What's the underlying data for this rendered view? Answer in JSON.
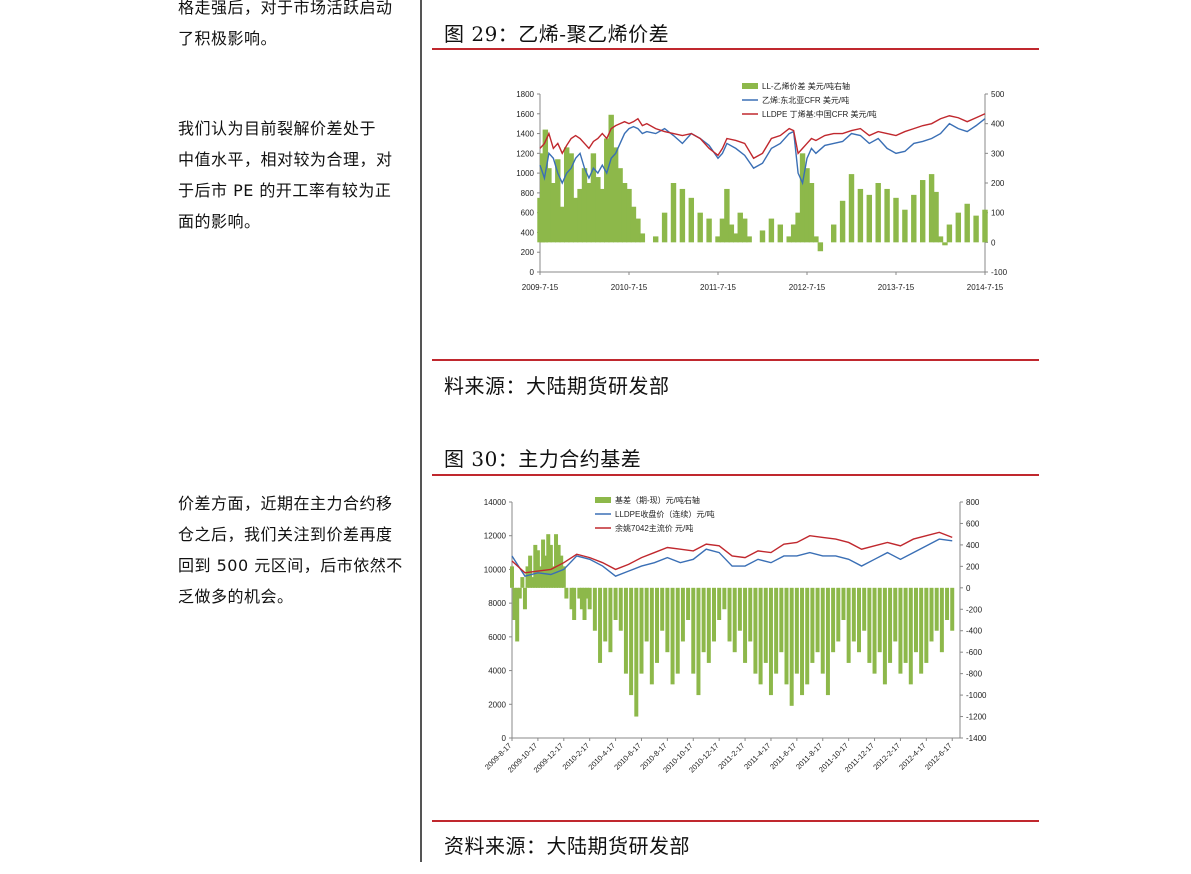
{
  "left_text": {
    "para1_line1": "格走强后，对于市场活跃启动",
    "para1_line2": "了积极影响。",
    "para2_lines": [
      "我们认为目前裂解价差处于",
      "中值水平，相对较为合理，对",
      "于后市 PE 的开工率有较为正",
      "面的影响。"
    ],
    "para3_lines": [
      "价差方面，近期在主力合约移",
      "仓之后，我们关注到价差再度",
      "回到 500 元区间，后市依然不",
      "乏做多的机会。"
    ]
  },
  "figure29": {
    "title": "图 29：乙烯-聚乙烯价差",
    "source": "料来源：大陆期货研发部"
  },
  "figure30": {
    "title": "图 30：主力合约基差",
    "source": "资料来源：大陆期货研发部"
  },
  "colors": {
    "spread": "#8db84a",
    "blue": "#3a6fb5",
    "red": "#c0282e"
  },
  "chart_data": [
    {
      "type": "line",
      "x_ticks": [
        "2009-7-15",
        "2010-7-15",
        "2011-7-15",
        "2012-7-15",
        "2013-7-15",
        "2014-7-15"
      ],
      "ylim_left": [
        0,
        1800
      ],
      "yticks_left": [
        0,
        200,
        400,
        600,
        800,
        1000,
        1200,
        1400,
        1600,
        1800
      ],
      "ylim_right": [
        -100,
        500
      ],
      "yticks_right": [
        -100,
        0,
        100,
        200,
        300,
        400,
        500
      ],
      "legend_position": "top-center",
      "series": [
        {
          "name": "LL-乙烯价差 美元/吨右轴",
          "type": "area",
          "axis": "right",
          "x": [
            0,
            0.03,
            0.06,
            0.1,
            0.15,
            0.2,
            0.25,
            0.3,
            0.35,
            0.4,
            0.45,
            0.5,
            0.55,
            0.6,
            0.65,
            0.7,
            0.75,
            0.8,
            0.85,
            0.9,
            0.95,
            1,
            1.05,
            1.1,
            1.15,
            1.2,
            1.3,
            1.4,
            1.5,
            1.6,
            1.7,
            1.8,
            1.9,
            2,
            2.05,
            2.1,
            2.15,
            2.2,
            2.25,
            2.3,
            2.35,
            2.4,
            2.5,
            2.6,
            2.7,
            2.8,
            2.85,
            2.9,
            2.95,
            3,
            3.05,
            3.1,
            3.15,
            3.2,
            3.3,
            3.4,
            3.5,
            3.6,
            3.7,
            3.8,
            3.9,
            4,
            4.1,
            4.2,
            4.3,
            4.4,
            4.45,
            4.5,
            4.55,
            4.6,
            4.7,
            4.8,
            4.9,
            5
          ],
          "values": [
            150,
            300,
            380,
            250,
            200,
            280,
            120,
            320,
            300,
            150,
            180,
            250,
            200,
            300,
            220,
            180,
            350,
            430,
            320,
            250,
            200,
            180,
            120,
            80,
            30,
            0,
            20,
            100,
            200,
            180,
            150,
            100,
            80,
            20,
            80,
            180,
            60,
            30,
            100,
            80,
            20,
            0,
            40,
            80,
            60,
            20,
            60,
            100,
            300,
            250,
            200,
            20,
            -30,
            0,
            60,
            140,
            230,
            180,
            160,
            200,
            180,
            150,
            110,
            160,
            210,
            230,
            170,
            20,
            -10,
            60,
            100,
            130,
            90,
            110
          ]
        },
        {
          "name": "乙烯:东北亚CFR 美元/吨",
          "type": "line",
          "axis": "left",
          "x": [
            0,
            0.05,
            0.1,
            0.15,
            0.2,
            0.25,
            0.3,
            0.35,
            0.4,
            0.45,
            0.5,
            0.55,
            0.6,
            0.65,
            0.7,
            0.75,
            0.8,
            0.85,
            0.9,
            0.95,
            1,
            1.05,
            1.1,
            1.15,
            1.2,
            1.3,
            1.4,
            1.5,
            1.6,
            1.7,
            1.8,
            1.9,
            2,
            2.05,
            2.1,
            2.2,
            2.3,
            2.4,
            2.5,
            2.6,
            2.7,
            2.8,
            2.85,
            2.9,
            2.95,
            3,
            3.05,
            3.1,
            3.2,
            3.3,
            3.4,
            3.5,
            3.6,
            3.7,
            3.8,
            3.9,
            4,
            4.1,
            4.2,
            4.3,
            4.4,
            4.5,
            4.6,
            4.7,
            4.8,
            4.9,
            5
          ],
          "values": [
            1080,
            950,
            1200,
            1150,
            1000,
            900,
            1000,
            1050,
            1150,
            1200,
            1050,
            950,
            1050,
            1000,
            1080,
            1000,
            1150,
            1200,
            1300,
            1400,
            1450,
            1470,
            1450,
            1400,
            1420,
            1400,
            1450,
            1380,
            1300,
            1400,
            1350,
            1280,
            1150,
            1200,
            1300,
            1250,
            1180,
            1050,
            1100,
            1250,
            1300,
            1400,
            1420,
            1000,
            900,
            1150,
            1250,
            1200,
            1280,
            1300,
            1320,
            1400,
            1380,
            1300,
            1350,
            1250,
            1200,
            1220,
            1300,
            1320,
            1350,
            1400,
            1500,
            1450,
            1420,
            1480,
            1550
          ]
        },
        {
          "name": "LLDPE 丁烯基:中国CFR 美元/吨",
          "type": "line",
          "axis": "left",
          "x": [
            0,
            0.05,
            0.1,
            0.15,
            0.2,
            0.25,
            0.3,
            0.35,
            0.4,
            0.45,
            0.5,
            0.55,
            0.6,
            0.65,
            0.7,
            0.75,
            0.8,
            0.85,
            0.9,
            0.95,
            1,
            1.05,
            1.1,
            1.15,
            1.2,
            1.3,
            1.4,
            1.5,
            1.6,
            1.7,
            1.8,
            1.9,
            2,
            2.05,
            2.1,
            2.2,
            2.3,
            2.4,
            2.5,
            2.6,
            2.7,
            2.8,
            2.85,
            2.9,
            2.95,
            3,
            3.05,
            3.1,
            3.2,
            3.3,
            3.4,
            3.5,
            3.6,
            3.7,
            3.8,
            3.9,
            4,
            4.1,
            4.2,
            4.3,
            4.4,
            4.5,
            4.6,
            4.7,
            4.8,
            4.9,
            5
          ],
          "values": [
            1250,
            1300,
            1400,
            1250,
            1300,
            1200,
            1280,
            1350,
            1380,
            1350,
            1300,
            1250,
            1320,
            1350,
            1400,
            1350,
            1450,
            1480,
            1500,
            1520,
            1500,
            1520,
            1550,
            1480,
            1500,
            1450,
            1420,
            1400,
            1380,
            1400,
            1350,
            1250,
            1180,
            1250,
            1350,
            1330,
            1300,
            1150,
            1200,
            1350,
            1380,
            1450,
            1430,
            1200,
            1250,
            1300,
            1350,
            1330,
            1380,
            1400,
            1400,
            1430,
            1450,
            1380,
            1420,
            1400,
            1380,
            1420,
            1450,
            1480,
            1500,
            1550,
            1580,
            1560,
            1520,
            1560,
            1600
          ]
        }
      ]
    },
    {
      "type": "line",
      "x_ticks": [
        "2009-8-17",
        "2009-10-17",
        "2009-12-17",
        "2010-2-17",
        "2010-4-17",
        "2010-6-17",
        "2010-8-17",
        "2010-10-17",
        "2010-12-17",
        "2011-2-17",
        "2011-4-17",
        "2011-6-17",
        "2011-8-17",
        "2011-10-17",
        "2011-12-17",
        "2012-2-17",
        "2012-4-17",
        "2012-6-17"
      ],
      "ylim_left": [
        0,
        14000
      ],
      "yticks_left": [
        0,
        2000,
        4000,
        6000,
        8000,
        10000,
        12000,
        14000
      ],
      "ylim_right": [
        -1400,
        800
      ],
      "yticks_right": [
        -1400,
        -1200,
        -1000,
        -800,
        -600,
        -400,
        -200,
        0,
        200,
        400,
        600,
        800
      ],
      "legend_position": "top-center",
      "series": [
        {
          "name": "基差（期-现）元/吨右轴",
          "type": "area",
          "axis": "right",
          "x": [
            0,
            0.1,
            0.2,
            0.3,
            0.4,
            0.5,
            0.6,
            0.7,
            0.8,
            0.9,
            1,
            1.1,
            1.2,
            1.3,
            1.4,
            1.5,
            1.6,
            1.7,
            1.8,
            1.9,
            2,
            2.1,
            2.2,
            2.3,
            2.4,
            2.5,
            2.6,
            2.7,
            2.8,
            2.9,
            3,
            3.2,
            3.4,
            3.6,
            3.8,
            4,
            4.2,
            4.4,
            4.6,
            4.8,
            5,
            5.2,
            5.4,
            5.6,
            5.8,
            6,
            6.2,
            6.4,
            6.6,
            6.8,
            7,
            7.2,
            7.4,
            7.6,
            7.8,
            8,
            8.2,
            8.4,
            8.6,
            8.8,
            9,
            9.2,
            9.4,
            9.6,
            9.8,
            10,
            10.2,
            10.4,
            10.6,
            10.8,
            11,
            11.2,
            11.4,
            11.6,
            11.8,
            12,
            12.2,
            12.4,
            12.6,
            12.8,
            13,
            13.2,
            13.4,
            13.6,
            13.8,
            14,
            14.2,
            14.4,
            14.6,
            14.8,
            15,
            15.2,
            15.4,
            15.6,
            15.8,
            16,
            16.2,
            16.4,
            16.6,
            16.8,
            17
          ],
          "values": [
            200,
            -300,
            -500,
            -100,
            100,
            -200,
            200,
            300,
            100,
            400,
            350,
            200,
            450,
            300,
            500,
            400,
            200,
            500,
            400,
            300,
            200,
            -100,
            0,
            -200,
            -300,
            0,
            -100,
            -200,
            -300,
            -100,
            -200,
            -400,
            -700,
            -500,
            -600,
            -300,
            -400,
            -800,
            -1000,
            -1200,
            -800,
            -500,
            -900,
            -700,
            -400,
            -600,
            -900,
            -800,
            -500,
            -300,
            -800,
            -1000,
            -600,
            -700,
            -500,
            -300,
            -200,
            -500,
            -600,
            -400,
            -700,
            -500,
            -800,
            -900,
            -700,
            -1000,
            -800,
            -600,
            -900,
            -1100,
            -800,
            -1000,
            -900,
            -700,
            -600,
            -800,
            -1000,
            -600,
            -500,
            -300,
            -700,
            -500,
            -600,
            -400,
            -700,
            -800,
            -600,
            -900,
            -700,
            -500,
            -800,
            -700,
            -900,
            -600,
            -800,
            -700,
            -500,
            -400,
            -600,
            -300,
            -400
          ]
        },
        {
          "name": "LLDPE收盘价（连续）元/吨",
          "type": "line",
          "axis": "left",
          "x": [
            0,
            0.5,
            1,
            1.5,
            2,
            2.5,
            3,
            3.5,
            4,
            4.5,
            5,
            5.5,
            6,
            6.5,
            7,
            7.5,
            8,
            8.5,
            9,
            9.5,
            10,
            10.5,
            11,
            11.5,
            12,
            12.5,
            13,
            13.5,
            14,
            14.5,
            15,
            15.5,
            16,
            16.5,
            17
          ],
          "values": [
            10800,
            9600,
            9800,
            9700,
            10000,
            10800,
            10600,
            10200,
            9600,
            9900,
            10200,
            10400,
            10700,
            10400,
            10600,
            11200,
            11000,
            10200,
            10200,
            10600,
            10400,
            10800,
            10800,
            11000,
            10800,
            10800,
            10600,
            10200,
            10600,
            11000,
            10600,
            11000,
            11400,
            11800,
            11700
          ]
        },
        {
          "name": "余姚7042主流价 元/吨",
          "type": "line",
          "axis": "left",
          "x": [
            0,
            0.5,
            1,
            1.5,
            2,
            2.5,
            3,
            3.5,
            4,
            4.5,
            5,
            5.5,
            6,
            6.5,
            7,
            7.5,
            8,
            8.5,
            9,
            9.5,
            10,
            10.5,
            11,
            11.5,
            12,
            12.5,
            13,
            13.5,
            14,
            14.5,
            15,
            15.5,
            16,
            16.5,
            17
          ],
          "values": [
            10500,
            9800,
            9900,
            10000,
            10400,
            10900,
            10700,
            10400,
            10000,
            10300,
            10700,
            11000,
            11300,
            11200,
            11100,
            11500,
            11400,
            10800,
            10700,
            11100,
            11000,
            11500,
            11600,
            12000,
            11900,
            11800,
            11600,
            11200,
            11400,
            11600,
            11400,
            11800,
            12000,
            12200,
            11900
          ]
        }
      ]
    }
  ]
}
